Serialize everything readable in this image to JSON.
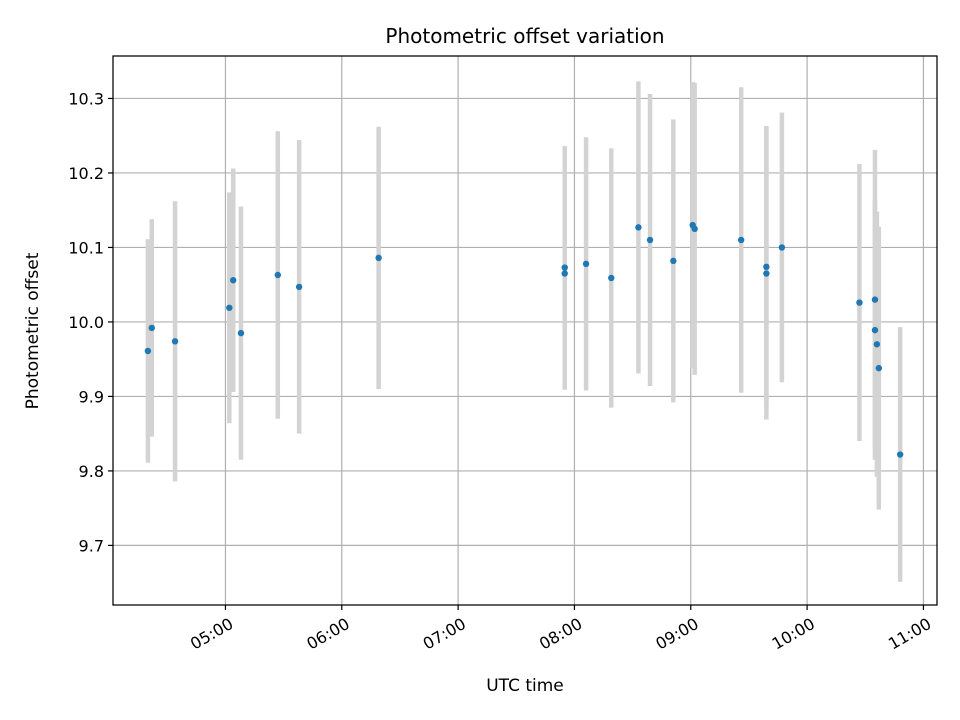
{
  "chart_data": {
    "type": "scatter",
    "title": "Photometric offset variation",
    "xlabel": "UTC time",
    "ylabel": "Photometric offset",
    "x_axis": {
      "type": "time",
      "xlim": [
        "04:02",
        "11:07"
      ],
      "tick_labels": [
        "05:00",
        "06:00",
        "07:00",
        "08:00",
        "09:00",
        "10:00",
        "11:00"
      ]
    },
    "y_axis": {
      "ylim": [
        9.62,
        10.357
      ],
      "tick_labels": [
        "9.7",
        "9.8",
        "9.9",
        "10.0",
        "10.1",
        "10.2",
        "10.3"
      ]
    },
    "grid": true,
    "colors": {
      "points": "#1f77b4",
      "errorbars": "#d3d3d3",
      "grid": "#b0b0b0"
    },
    "series": [
      {
        "points": [
          {
            "x": "04:20",
            "y": 9.961,
            "yerr": 0.15
          },
          {
            "x": "04:22",
            "y": 9.992,
            "yerr": 0.146
          },
          {
            "x": "04:34",
            "y": 9.974,
            "yerr": 0.188
          },
          {
            "x": "05:02",
            "y": 10.019,
            "yerr": 0.155
          },
          {
            "x": "05:04",
            "y": 10.056,
            "yerr": 0.15
          },
          {
            "x": "05:08",
            "y": 9.985,
            "yerr": 0.17
          },
          {
            "x": "05:27",
            "y": 10.063,
            "yerr": 0.193
          },
          {
            "x": "05:38",
            "y": 10.047,
            "yerr": 0.197
          },
          {
            "x": "06:19",
            "y": 10.086,
            "yerr": 0.176
          },
          {
            "x": "07:55",
            "y": 10.065,
            "yerr": 0.156
          },
          {
            "x": "07:55",
            "y": 10.073,
            "yerr": 0.163
          },
          {
            "x": "08:06",
            "y": 10.078,
            "yerr": 0.17
          },
          {
            "x": "08:19",
            "y": 10.059,
            "yerr": 0.174
          },
          {
            "x": "08:33",
            "y": 10.127,
            "yerr": 0.196
          },
          {
            "x": "08:39",
            "y": 10.11,
            "yerr": 0.196
          },
          {
            "x": "08:51",
            "y": 10.082,
            "yerr": 0.19
          },
          {
            "x": "09:01",
            "y": 10.13,
            "yerr": 0.192
          },
          {
            "x": "09:02",
            "y": 10.125,
            "yerr": 0.196
          },
          {
            "x": "09:26",
            "y": 10.11,
            "yerr": 0.205
          },
          {
            "x": "09:39",
            "y": 10.065,
            "yerr": 0.196
          },
          {
            "x": "09:39",
            "y": 10.074,
            "yerr": 0.189
          },
          {
            "x": "09:47",
            "y": 10.1,
            "yerr": 0.181
          },
          {
            "x": "10:27",
            "y": 10.026,
            "yerr": 0.186
          },
          {
            "x": "10:35",
            "y": 10.03,
            "yerr": 0.201
          },
          {
            "x": "10:35",
            "y": 9.989,
            "yerr": 0.174
          },
          {
            "x": "10:36",
            "y": 9.97,
            "yerr": 0.178
          },
          {
            "x": "10:37",
            "y": 9.938,
            "yerr": 0.19
          },
          {
            "x": "10:48",
            "y": 9.822,
            "yerr": 0.171
          }
        ]
      }
    ]
  }
}
